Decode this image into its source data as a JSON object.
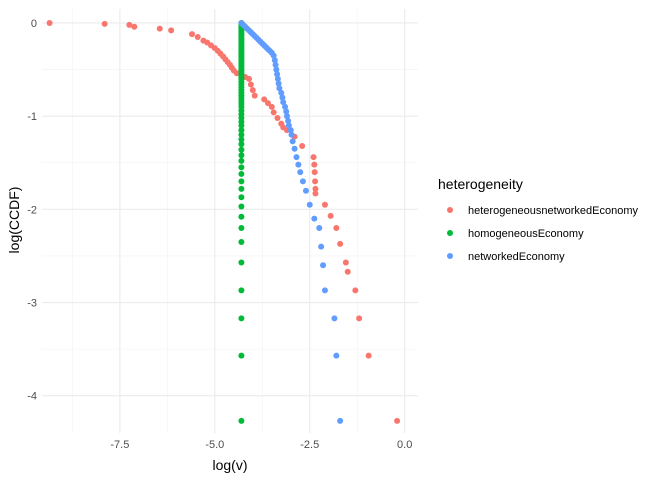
{
  "chart_data": {
    "type": "scatter",
    "xlabel": "log(v)",
    "ylabel": "log(CCDF)",
    "xlim": [
      -9.55,
      0.35
    ],
    "ylim": [
      -4.4,
      0.15
    ],
    "x_ticks": [
      -7.5,
      -5.0,
      -2.5,
      0.0
    ],
    "x_tick_labels": [
      "-7.5",
      "-5.0",
      "-2.5",
      "0.0"
    ],
    "y_ticks": [
      0,
      -1,
      -2,
      -3,
      -4
    ],
    "y_tick_labels": [
      "0",
      "-1",
      "-2",
      "-3",
      "-4"
    ],
    "grid": true,
    "legend": {
      "title": "heterogeneity",
      "position": "right"
    },
    "series": [
      {
        "name": "heterogeneousnetworkedEconomy",
        "color": "#F8766D",
        "points": [
          [
            -9.35,
            0.0
          ],
          [
            -7.9,
            -0.01
          ],
          [
            -7.25,
            -0.02
          ],
          [
            -7.12,
            -0.04
          ],
          [
            -6.45,
            -0.06
          ],
          [
            -6.15,
            -0.08
          ],
          [
            -5.6,
            -0.12
          ],
          [
            -5.45,
            -0.15
          ],
          [
            -5.3,
            -0.19
          ],
          [
            -5.2,
            -0.21
          ],
          [
            -5.1,
            -0.24
          ],
          [
            -5.0,
            -0.27
          ],
          [
            -4.92,
            -0.3
          ],
          [
            -4.85,
            -0.33
          ],
          [
            -4.78,
            -0.36
          ],
          [
            -4.72,
            -0.39
          ],
          [
            -4.66,
            -0.42
          ],
          [
            -4.6,
            -0.45
          ],
          [
            -4.55,
            -0.48
          ],
          [
            -4.5,
            -0.51
          ],
          [
            -4.42,
            -0.54
          ],
          [
            -4.3,
            -0.56
          ],
          [
            -4.2,
            -0.58
          ],
          [
            -4.1,
            -0.6
          ],
          [
            -4.05,
            -0.66
          ],
          [
            -4.0,
            -0.72
          ],
          [
            -3.95,
            -0.78
          ],
          [
            -3.7,
            -0.82
          ],
          [
            -3.6,
            -0.86
          ],
          [
            -3.5,
            -0.9
          ],
          [
            -3.45,
            -0.96
          ],
          [
            -3.35,
            -1.02
          ],
          [
            -3.25,
            -1.08
          ],
          [
            -3.2,
            -1.12
          ],
          [
            -3.1,
            -1.15
          ],
          [
            -2.9,
            -1.22
          ],
          [
            -2.7,
            -1.32
          ],
          [
            -2.4,
            -1.44
          ],
          [
            -2.38,
            -1.52
          ],
          [
            -2.37,
            -1.6
          ],
          [
            -2.36,
            -1.7
          ],
          [
            -2.35,
            -1.78
          ],
          [
            -2.35,
            -1.83
          ],
          [
            -2.1,
            -1.95
          ],
          [
            -1.95,
            -2.07
          ],
          [
            -1.8,
            -2.2
          ],
          [
            -1.7,
            -2.37
          ],
          [
            -1.55,
            -2.57
          ],
          [
            -1.5,
            -2.67
          ],
          [
            -1.3,
            -2.87
          ],
          [
            -1.2,
            -3.17
          ],
          [
            -0.95,
            -3.57
          ],
          [
            -0.2,
            -4.27
          ]
        ]
      },
      {
        "name": "homogeneousEconomy",
        "color": "#00BA38",
        "points": [
          [
            -4.3,
            0.0
          ],
          [
            -4.3,
            -0.02
          ],
          [
            -4.3,
            -0.04
          ],
          [
            -4.3,
            -0.06
          ],
          [
            -4.3,
            -0.08
          ],
          [
            -4.3,
            -0.1
          ],
          [
            -4.3,
            -0.12
          ],
          [
            -4.3,
            -0.14
          ],
          [
            -4.3,
            -0.16
          ],
          [
            -4.3,
            -0.18
          ],
          [
            -4.3,
            -0.2
          ],
          [
            -4.3,
            -0.22
          ],
          [
            -4.3,
            -0.24
          ],
          [
            -4.3,
            -0.26
          ],
          [
            -4.3,
            -0.28
          ],
          [
            -4.3,
            -0.3
          ],
          [
            -4.3,
            -0.32
          ],
          [
            -4.3,
            -0.34
          ],
          [
            -4.3,
            -0.36
          ],
          [
            -4.3,
            -0.38
          ],
          [
            -4.3,
            -0.4
          ],
          [
            -4.3,
            -0.42
          ],
          [
            -4.3,
            -0.44
          ],
          [
            -4.3,
            -0.46
          ],
          [
            -4.3,
            -0.48
          ],
          [
            -4.3,
            -0.5
          ],
          [
            -4.3,
            -0.52
          ],
          [
            -4.3,
            -0.54
          ],
          [
            -4.3,
            -0.56
          ],
          [
            -4.3,
            -0.58
          ],
          [
            -4.3,
            -0.6
          ],
          [
            -4.3,
            -0.63
          ],
          [
            -4.3,
            -0.66
          ],
          [
            -4.3,
            -0.69
          ],
          [
            -4.3,
            -0.72
          ],
          [
            -4.3,
            -0.75
          ],
          [
            -4.3,
            -0.78
          ],
          [
            -4.3,
            -0.81
          ],
          [
            -4.3,
            -0.84
          ],
          [
            -4.3,
            -0.87
          ],
          [
            -4.3,
            -0.9
          ],
          [
            -4.3,
            -0.94
          ],
          [
            -4.3,
            -0.98
          ],
          [
            -4.3,
            -1.02
          ],
          [
            -4.3,
            -1.06
          ],
          [
            -4.3,
            -1.1
          ],
          [
            -4.3,
            -1.15
          ],
          [
            -4.3,
            -1.2
          ],
          [
            -4.3,
            -1.25
          ],
          [
            -4.3,
            -1.3
          ],
          [
            -4.3,
            -1.36
          ],
          [
            -4.3,
            -1.42
          ],
          [
            -4.3,
            -1.48
          ],
          [
            -4.3,
            -1.55
          ],
          [
            -4.3,
            -1.62
          ],
          [
            -4.3,
            -1.7
          ],
          [
            -4.3,
            -1.78
          ],
          [
            -4.3,
            -1.87
          ],
          [
            -4.3,
            -1.97
          ],
          [
            -4.3,
            -2.08
          ],
          [
            -4.3,
            -2.2
          ],
          [
            -4.3,
            -2.35
          ],
          [
            -4.3,
            -2.57
          ],
          [
            -4.3,
            -2.87
          ],
          [
            -4.3,
            -3.17
          ],
          [
            -4.3,
            -3.57
          ],
          [
            -4.3,
            -4.27
          ]
        ]
      },
      {
        "name": "networkedEconomy",
        "color": "#619CFF",
        "points": [
          [
            -4.3,
            0.0
          ],
          [
            -4.25,
            -0.02
          ],
          [
            -4.2,
            -0.04
          ],
          [
            -4.15,
            -0.06
          ],
          [
            -4.1,
            -0.08
          ],
          [
            -4.05,
            -0.1
          ],
          [
            -4.0,
            -0.12
          ],
          [
            -3.95,
            -0.14
          ],
          [
            -3.9,
            -0.16
          ],
          [
            -3.85,
            -0.18
          ],
          [
            -3.8,
            -0.2
          ],
          [
            -3.75,
            -0.22
          ],
          [
            -3.7,
            -0.24
          ],
          [
            -3.65,
            -0.26
          ],
          [
            -3.6,
            -0.28
          ],
          [
            -3.55,
            -0.3
          ],
          [
            -3.5,
            -0.32
          ],
          [
            -3.45,
            -0.35
          ],
          [
            -3.42,
            -0.4
          ],
          [
            -3.4,
            -0.45
          ],
          [
            -3.38,
            -0.5
          ],
          [
            -3.36,
            -0.55
          ],
          [
            -3.34,
            -0.6
          ],
          [
            -3.32,
            -0.65
          ],
          [
            -3.3,
            -0.7
          ],
          [
            -3.25,
            -0.75
          ],
          [
            -3.22,
            -0.8
          ],
          [
            -3.2,
            -0.85
          ],
          [
            -3.15,
            -0.9
          ],
          [
            -3.12,
            -0.95
          ],
          [
            -3.1,
            -1.0
          ],
          [
            -3.07,
            -1.05
          ],
          [
            -3.05,
            -1.1
          ],
          [
            -3.0,
            -1.15
          ],
          [
            -2.98,
            -1.2
          ],
          [
            -2.95,
            -1.27
          ],
          [
            -2.9,
            -1.35
          ],
          [
            -2.85,
            -1.44
          ],
          [
            -2.8,
            -1.52
          ],
          [
            -2.75,
            -1.6
          ],
          [
            -2.68,
            -1.7
          ],
          [
            -2.6,
            -1.8
          ],
          [
            -2.5,
            -1.95
          ],
          [
            -2.38,
            -2.1
          ],
          [
            -2.25,
            -2.2
          ],
          [
            -2.2,
            -2.4
          ],
          [
            -2.15,
            -2.6
          ],
          [
            -2.1,
            -2.87
          ],
          [
            -1.85,
            -3.17
          ],
          [
            -1.8,
            -3.57
          ],
          [
            -1.7,
            -4.27
          ]
        ]
      }
    ]
  }
}
